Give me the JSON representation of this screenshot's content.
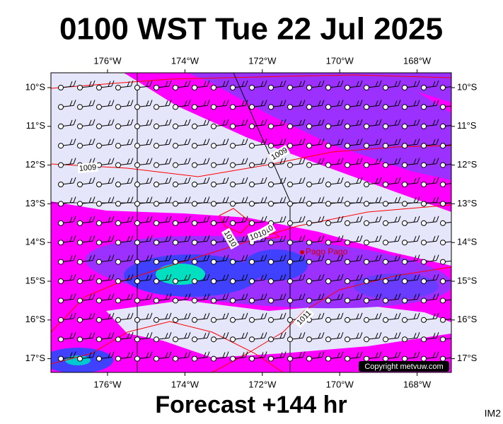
{
  "header": {
    "title": "0100 WST Tue 22 Jul 2025"
  },
  "map": {
    "lon_ticks": [
      {
        "value": -176,
        "label": "176°W"
      },
      {
        "value": -174,
        "label": "174°W"
      },
      {
        "value": -172,
        "label": "172°W"
      },
      {
        "value": -170,
        "label": "170°W"
      },
      {
        "value": -168,
        "label": "168°W"
      }
    ],
    "lat_ticks": [
      {
        "value": -10,
        "label": "10°S"
      },
      {
        "value": -11,
        "label": "11°S"
      },
      {
        "value": -12,
        "label": "12°S"
      },
      {
        "value": -13,
        "label": "13°S"
      },
      {
        "value": -14,
        "label": "14°S"
      },
      {
        "value": -15,
        "label": "15°S"
      },
      {
        "value": -16,
        "label": "16°S"
      },
      {
        "value": -17,
        "label": "17°S"
      }
    ],
    "isobar_labels": [
      "1009",
      "1009",
      "1010",
      "1010",
      "1010",
      "1011"
    ],
    "places": [
      "Pago Pago"
    ],
    "copyright": "Copyright metvuw.com"
  },
  "footer": {
    "forecast": "Forecast +144 hr",
    "image_id": "IM2"
  }
}
